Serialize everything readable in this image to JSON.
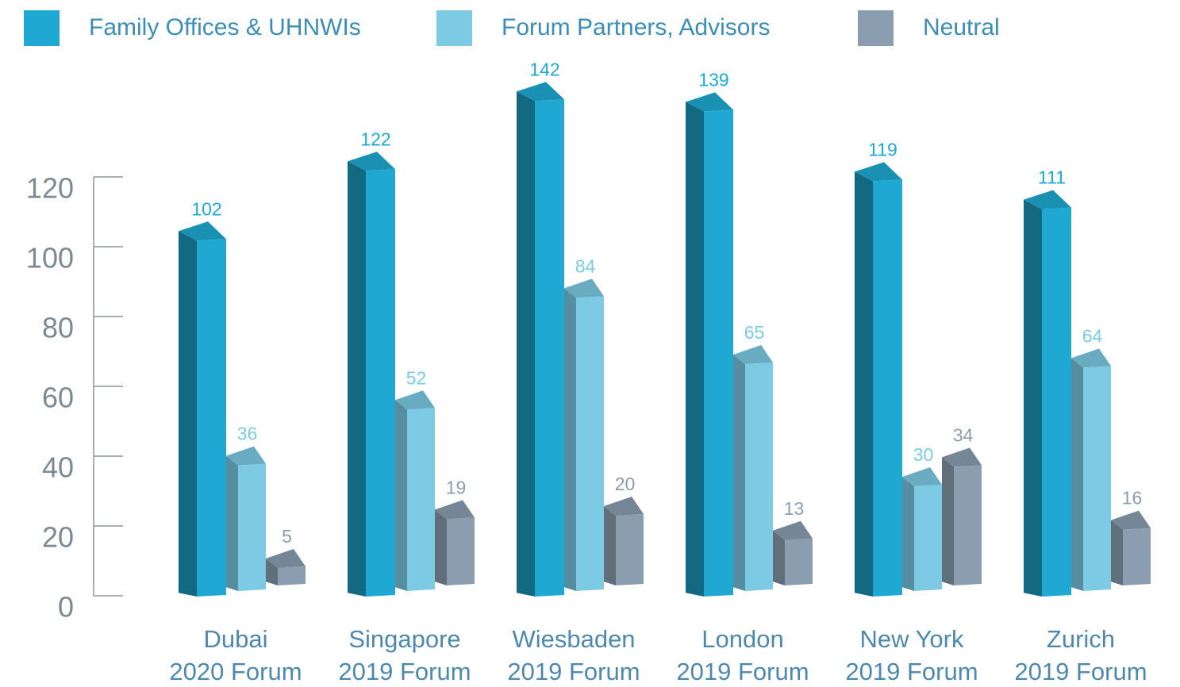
{
  "chart_data": {
    "type": "bar3d",
    "categories": [
      [
        "Dubai",
        "2020 Forum"
      ],
      [
        "Singapore",
        "2019 Forum"
      ],
      [
        "Wiesbaden",
        "2019 Forum"
      ],
      [
        "London",
        "2019 Forum"
      ],
      [
        "New York",
        "2019 Forum"
      ],
      [
        "Zurich",
        "2019 Forum"
      ]
    ],
    "series": [
      {
        "name": "Family Offices & UHNWIs",
        "color": "#1fa9d2",
        "values": [
          102,
          122,
          142,
          139,
          119,
          111
        ]
      },
      {
        "name": "Forum Partners, Advisors",
        "color": "#7ccae4",
        "values": [
          36,
          52,
          84,
          65,
          30,
          64
        ]
      },
      {
        "name": "Neutral",
        "color": "#8a9eb0",
        "values": [
          5,
          19,
          20,
          13,
          34,
          16
        ]
      }
    ],
    "ylim": [
      0,
      120
    ],
    "yticks": [
      0,
      20,
      40,
      60,
      80,
      100,
      120
    ],
    "legend": "top"
  }
}
